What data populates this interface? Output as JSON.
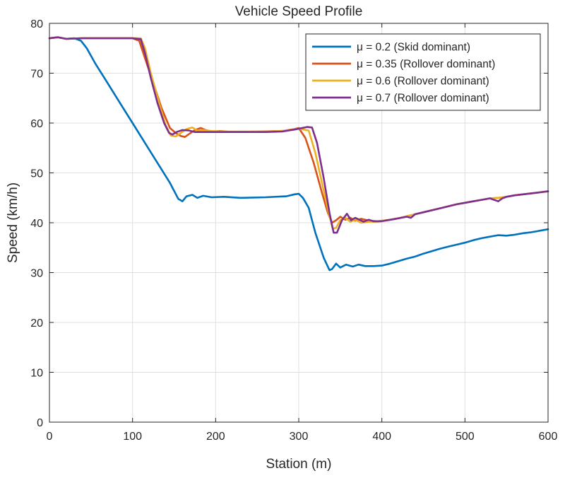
{
  "chart_data": {
    "type": "line",
    "title": "Vehicle Speed Profile",
    "xlabel": "Station (m)",
    "ylabel": "Speed (km/h)",
    "xlim": [
      0,
      600
    ],
    "ylim": [
      0,
      80
    ],
    "xticks": [
      0,
      100,
      200,
      300,
      400,
      500,
      600
    ],
    "yticks": [
      0,
      10,
      20,
      30,
      40,
      50,
      60,
      70,
      80
    ],
    "grid": true,
    "legend_position": "top-right",
    "series": [
      {
        "name": "μ = 0.2 (Skid dominant)",
        "color": "#0072BD",
        "points": [
          [
            0,
            77.0
          ],
          [
            10,
            77.2
          ],
          [
            20,
            76.9
          ],
          [
            30,
            77.0
          ],
          [
            38,
            76.5
          ],
          [
            45,
            75.0
          ],
          [
            55,
            72.0
          ],
          [
            70,
            68.0
          ],
          [
            85,
            64.0
          ],
          [
            100,
            60.0
          ],
          [
            115,
            56.0
          ],
          [
            130,
            52.0
          ],
          [
            145,
            48.0
          ],
          [
            155,
            44.8
          ],
          [
            160,
            44.3
          ],
          [
            165,
            45.3
          ],
          [
            172,
            45.6
          ],
          [
            178,
            45.0
          ],
          [
            185,
            45.4
          ],
          [
            195,
            45.1
          ],
          [
            210,
            45.2
          ],
          [
            230,
            45.0
          ],
          [
            260,
            45.1
          ],
          [
            285,
            45.3
          ],
          [
            295,
            45.7
          ],
          [
            300,
            45.8
          ],
          [
            305,
            45.0
          ],
          [
            312,
            43.0
          ],
          [
            320,
            38.0
          ],
          [
            330,
            33.0
          ],
          [
            337,
            30.5
          ],
          [
            340,
            30.7
          ],
          [
            345,
            31.8
          ],
          [
            350,
            31.0
          ],
          [
            357,
            31.6
          ],
          [
            365,
            31.2
          ],
          [
            372,
            31.6
          ],
          [
            380,
            31.3
          ],
          [
            390,
            31.3
          ],
          [
            400,
            31.4
          ],
          [
            410,
            31.8
          ],
          [
            420,
            32.3
          ],
          [
            430,
            32.8
          ],
          [
            440,
            33.2
          ],
          [
            450,
            33.8
          ],
          [
            460,
            34.3
          ],
          [
            470,
            34.8
          ],
          [
            480,
            35.2
          ],
          [
            490,
            35.6
          ],
          [
            500,
            36.0
          ],
          [
            510,
            36.5
          ],
          [
            520,
            36.9
          ],
          [
            530,
            37.2
          ],
          [
            540,
            37.5
          ],
          [
            550,
            37.4
          ],
          [
            560,
            37.6
          ],
          [
            570,
            37.9
          ],
          [
            580,
            38.1
          ],
          [
            590,
            38.4
          ],
          [
            600,
            38.7
          ]
        ]
      },
      {
        "name": "μ = 0.35 (Rollover dominant)",
        "color": "#D95319",
        "points": [
          [
            0,
            77.0
          ],
          [
            10,
            77.2
          ],
          [
            20,
            76.9
          ],
          [
            40,
            77.0
          ],
          [
            60,
            77.0
          ],
          [
            80,
            77.0
          ],
          [
            100,
            77.0
          ],
          [
            108,
            76.5
          ],
          [
            115,
            73.0
          ],
          [
            125,
            68.0
          ],
          [
            135,
            63.0
          ],
          [
            145,
            59.0
          ],
          [
            152,
            58.0
          ],
          [
            158,
            57.4
          ],
          [
            163,
            57.2
          ],
          [
            168,
            57.8
          ],
          [
            175,
            58.6
          ],
          [
            182,
            59.0
          ],
          [
            188,
            58.6
          ],
          [
            195,
            58.3
          ],
          [
            205,
            58.4
          ],
          [
            220,
            58.2
          ],
          [
            250,
            58.3
          ],
          [
            280,
            58.4
          ],
          [
            295,
            58.8
          ],
          [
            300,
            59.0
          ],
          [
            308,
            57.0
          ],
          [
            318,
            52.0
          ],
          [
            328,
            46.0
          ],
          [
            335,
            42.0
          ],
          [
            340,
            40.0
          ],
          [
            345,
            40.5
          ],
          [
            350,
            41.2
          ],
          [
            356,
            40.6
          ],
          [
            362,
            41.0
          ],
          [
            368,
            40.4
          ],
          [
            375,
            40.8
          ],
          [
            385,
            40.4
          ],
          [
            395,
            40.3
          ],
          [
            400,
            40.4
          ],
          [
            410,
            40.6
          ],
          [
            420,
            40.9
          ],
          [
            430,
            41.3
          ],
          [
            440,
            41.7
          ],
          [
            450,
            42.1
          ],
          [
            460,
            42.5
          ],
          [
            470,
            42.9
          ],
          [
            480,
            43.3
          ],
          [
            490,
            43.7
          ],
          [
            500,
            44.0
          ],
          [
            510,
            44.3
          ],
          [
            520,
            44.6
          ],
          [
            530,
            44.9
          ],
          [
            540,
            45.0
          ],
          [
            550,
            45.2
          ],
          [
            560,
            45.5
          ],
          [
            570,
            45.7
          ],
          [
            580,
            45.9
          ],
          [
            590,
            46.1
          ],
          [
            600,
            46.3
          ]
        ]
      },
      {
        "name": "μ = 0.6 (Rollover dominant)",
        "color": "#EDB120",
        "points": [
          [
            0,
            77.0
          ],
          [
            10,
            77.2
          ],
          [
            20,
            76.9
          ],
          [
            40,
            77.0
          ],
          [
            60,
            77.0
          ],
          [
            80,
            77.0
          ],
          [
            100,
            77.0
          ],
          [
            110,
            77.0
          ],
          [
            115,
            75.0
          ],
          [
            122,
            70.0
          ],
          [
            132,
            64.0
          ],
          [
            140,
            59.5
          ],
          [
            146,
            57.5
          ],
          [
            152,
            57.3
          ],
          [
            158,
            58.0
          ],
          [
            165,
            58.8
          ],
          [
            172,
            59.1
          ],
          [
            178,
            58.5
          ],
          [
            185,
            58.6
          ],
          [
            195,
            58.4
          ],
          [
            210,
            58.3
          ],
          [
            240,
            58.3
          ],
          [
            270,
            58.3
          ],
          [
            290,
            58.6
          ],
          [
            300,
            58.9
          ],
          [
            312,
            58.5
          ],
          [
            320,
            54.0
          ],
          [
            328,
            48.0
          ],
          [
            336,
            42.0
          ],
          [
            341,
            38.8
          ],
          [
            345,
            39.0
          ],
          [
            350,
            40.5
          ],
          [
            356,
            41.0
          ],
          [
            362,
            40.2
          ],
          [
            368,
            40.6
          ],
          [
            375,
            40.0
          ],
          [
            385,
            40.2
          ],
          [
            395,
            40.2
          ],
          [
            400,
            40.4
          ],
          [
            410,
            40.6
          ],
          [
            420,
            40.9
          ],
          [
            430,
            41.3
          ],
          [
            440,
            41.7
          ],
          [
            450,
            42.1
          ],
          [
            460,
            42.5
          ],
          [
            470,
            42.9
          ],
          [
            480,
            43.3
          ],
          [
            490,
            43.7
          ],
          [
            500,
            44.0
          ],
          [
            510,
            44.3
          ],
          [
            520,
            44.6
          ],
          [
            530,
            44.9
          ],
          [
            540,
            45.0
          ],
          [
            550,
            45.2
          ],
          [
            560,
            45.5
          ],
          [
            570,
            45.7
          ],
          [
            580,
            45.9
          ],
          [
            590,
            46.1
          ],
          [
            600,
            46.3
          ]
        ]
      },
      {
        "name": "μ = 0.7 (Rollover dominant)",
        "color": "#7E2F8E",
        "points": [
          [
            0,
            77.0
          ],
          [
            10,
            77.2
          ],
          [
            20,
            76.9
          ],
          [
            40,
            77.0
          ],
          [
            60,
            77.0
          ],
          [
            80,
            77.0
          ],
          [
            100,
            77.0
          ],
          [
            110,
            76.8
          ],
          [
            115,
            74.0
          ],
          [
            122,
            69.0
          ],
          [
            130,
            64.0
          ],
          [
            138,
            60.0
          ],
          [
            144,
            58.0
          ],
          [
            148,
            57.7
          ],
          [
            153,
            58.2
          ],
          [
            160,
            58.6
          ],
          [
            168,
            58.5
          ],
          [
            175,
            58.2
          ],
          [
            185,
            58.2
          ],
          [
            200,
            58.2
          ],
          [
            230,
            58.2
          ],
          [
            260,
            58.2
          ],
          [
            280,
            58.3
          ],
          [
            295,
            58.7
          ],
          [
            310,
            59.2
          ],
          [
            316,
            59.1
          ],
          [
            322,
            56.0
          ],
          [
            330,
            49.0
          ],
          [
            337,
            42.0
          ],
          [
            342,
            38.0
          ],
          [
            346,
            38.0
          ],
          [
            352,
            40.5
          ],
          [
            358,
            41.8
          ],
          [
            363,
            40.5
          ],
          [
            368,
            41.0
          ],
          [
            373,
            40.6
          ],
          [
            378,
            40.2
          ],
          [
            384,
            40.6
          ],
          [
            390,
            40.3
          ],
          [
            400,
            40.3
          ],
          [
            410,
            40.6
          ],
          [
            420,
            40.9
          ],
          [
            430,
            41.2
          ],
          [
            435,
            41.0
          ],
          [
            440,
            41.7
          ],
          [
            450,
            42.1
          ],
          [
            460,
            42.5
          ],
          [
            470,
            42.9
          ],
          [
            480,
            43.3
          ],
          [
            490,
            43.7
          ],
          [
            500,
            44.0
          ],
          [
            510,
            44.3
          ],
          [
            520,
            44.6
          ],
          [
            530,
            44.9
          ],
          [
            540,
            44.3
          ],
          [
            545,
            44.9
          ],
          [
            550,
            45.2
          ],
          [
            560,
            45.5
          ],
          [
            570,
            45.7
          ],
          [
            580,
            45.9
          ],
          [
            590,
            46.1
          ],
          [
            600,
            46.3
          ]
        ]
      }
    ]
  }
}
